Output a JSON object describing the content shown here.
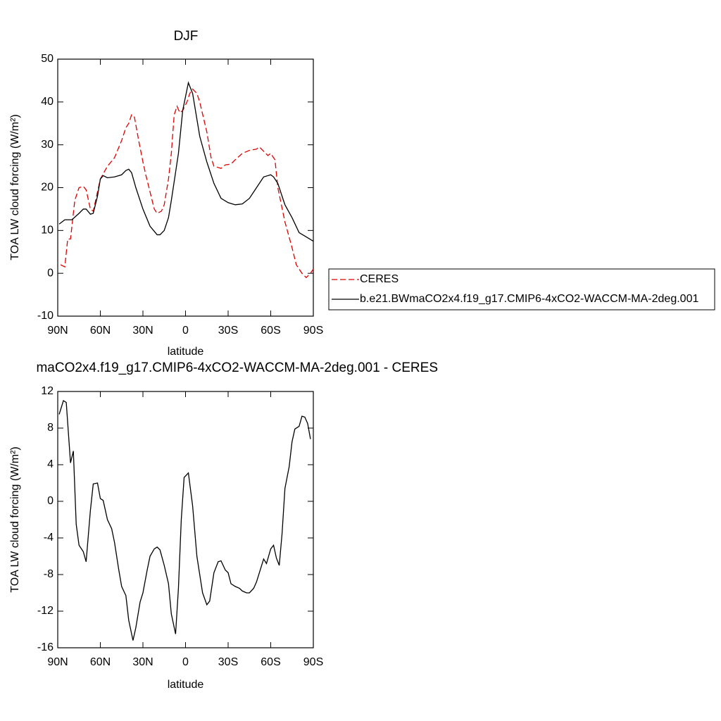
{
  "chart_data": [
    {
      "type": "line",
      "title": "DJF",
      "xlabel": "latitude",
      "ylabel": "TOA LW cloud forcing (W/m²)",
      "xlim": [
        90,
        -90
      ],
      "ylim": [
        -10,
        50
      ],
      "xticks": [
        {
          "value": 90,
          "label": "90N"
        },
        {
          "value": 60,
          "label": "60N"
        },
        {
          "value": 30,
          "label": "30N"
        },
        0,
        {
          "value": -30,
          "label": "30S"
        },
        {
          "value": -60,
          "label": "60S"
        },
        {
          "value": -90,
          "label": "90S"
        }
      ],
      "yticks": [
        -10,
        0,
        10,
        20,
        30,
        40,
        50
      ],
      "legend": "outside right",
      "series": [
        {
          "name": "CERES",
          "color": "#e00000",
          "dash": true,
          "x": [
            88,
            85,
            83,
            81,
            78,
            75,
            72,
            70,
            67,
            65,
            62,
            60,
            55,
            50,
            45,
            42,
            40,
            38,
            36,
            33,
            30,
            28,
            25,
            22,
            20,
            17,
            15,
            12,
            10,
            8,
            6,
            4,
            2,
            -1,
            -3,
            -5,
            -8,
            -10,
            -15,
            -18,
            -20,
            -25,
            -28,
            -32,
            -35,
            -40,
            -45,
            -50,
            -52,
            -55,
            -58,
            -60,
            -63,
            -65,
            -70,
            -75,
            -78,
            -82,
            -85,
            -88,
            -90
          ],
          "values": [
            2,
            1.5,
            8,
            8,
            17,
            20,
            20.3,
            19.5,
            15,
            14.5,
            19,
            22,
            25,
            27,
            31,
            34,
            35,
            37,
            36.5,
            31,
            26,
            23,
            19,
            15,
            14,
            14.5,
            16,
            22,
            28,
            37,
            39,
            37.5,
            38,
            40,
            42,
            43,
            42,
            40,
            33,
            27,
            25,
            24.5,
            25.3,
            25.5,
            26.5,
            28,
            28.7,
            29,
            29.5,
            28.5,
            27.5,
            28,
            26.5,
            20,
            12,
            6,
            2,
            0,
            -1,
            0,
            1
          ]
        },
        {
          "name": "b.e21.BWmaCO2x4.f19_g17.CMIP6-4xCO2-WACCM-MA-2deg.001",
          "color": "#000000",
          "dash": false,
          "x": [
            89,
            85,
            80,
            75,
            72,
            70,
            67,
            65,
            62,
            60,
            58,
            55,
            50,
            45,
            42,
            40,
            38,
            35,
            30,
            25,
            20,
            18,
            15,
            12,
            10,
            5,
            2,
            -2,
            -5,
            -10,
            -15,
            -20,
            -25,
            -30,
            -35,
            -40,
            -45,
            -50,
            -55,
            -60,
            -62,
            -65,
            -70,
            -75,
            -80,
            -85,
            -90
          ],
          "values": [
            11.5,
            12.5,
            12.5,
            14,
            15,
            15,
            13.8,
            14,
            18,
            22,
            22.8,
            22.3,
            22.5,
            23,
            24,
            24.3,
            23.5,
            20,
            15,
            11,
            9,
            9,
            10,
            13,
            17,
            28,
            38,
            44.5,
            42,
            32,
            26,
            21,
            17.5,
            16.5,
            16,
            16.2,
            17.5,
            20,
            22.5,
            23,
            22.5,
            21,
            16,
            13,
            9.5,
            8.5,
            7.5
          ]
        }
      ]
    },
    {
      "type": "line",
      "title": "maCO2x4.f19_g17.CMIP6-4xCO2-WACCM-MA-2deg.001 - CERES",
      "xlabel": "latitude",
      "ylabel": "TOA LW cloud forcing (W/m²)",
      "xlim": [
        90,
        -90
      ],
      "ylim": [
        -16,
        12
      ],
      "xticks": [
        {
          "value": 90,
          "label": "90N"
        },
        {
          "value": 60,
          "label": "60N"
        },
        {
          "value": 30,
          "label": "30N"
        },
        0,
        {
          "value": -30,
          "label": "30S"
        },
        {
          "value": -60,
          "label": "60S"
        },
        {
          "value": -90,
          "label": "90S"
        }
      ],
      "yticks": [
        -16,
        -12,
        -8,
        -4,
        0,
        4,
        8,
        12
      ],
      "series": [
        {
          "color": "#000000",
          "dash": false,
          "x": [
            89,
            86,
            84,
            81,
            79,
            77,
            75,
            72,
            70,
            67,
            65,
            62,
            60,
            58,
            55,
            52,
            50,
            47,
            45,
            42,
            40,
            37,
            35,
            32,
            30,
            27,
            25,
            22,
            20,
            18,
            15,
            12,
            10,
            7,
            5,
            3,
            1,
            -2,
            -5,
            -8,
            -12,
            -15,
            -17,
            -20,
            -23,
            -25,
            -28,
            -30,
            -32,
            -35,
            -38,
            -40,
            -43,
            -45,
            -48,
            -50,
            -55,
            -57,
            -60,
            -62,
            -64,
            -66,
            -68,
            -70,
            -73,
            -75,
            -77,
            -80,
            -82,
            -84,
            -86,
            -88
          ],
          "values": [
            9.5,
            11,
            10.8,
            4.2,
            5.5,
            -2.5,
            -4.8,
            -5.5,
            -6.6,
            -1,
            1.9,
            2,
            0.3,
            0.1,
            -2,
            -3,
            -4.5,
            -7.5,
            -9.3,
            -10.3,
            -13,
            -15.2,
            -13.8,
            -11,
            -10,
            -7.5,
            -6,
            -5.2,
            -5,
            -5.3,
            -7,
            -9,
            -12.3,
            -14.5,
            -9.5,
            -2,
            2.6,
            3.1,
            -0.5,
            -6,
            -10,
            -11.3,
            -10.9,
            -7.8,
            -6.6,
            -6.5,
            -7.5,
            -7.8,
            -9,
            -9.3,
            -9.5,
            -9.8,
            -10,
            -10,
            -9.5,
            -8.8,
            -6.3,
            -6.8,
            -5.2,
            -4.8,
            -6.2,
            -7,
            -3.5,
            1.4,
            3.8,
            6.5,
            7.9,
            8.2,
            9.3,
            9.2,
            8.5,
            6.8
          ]
        }
      ]
    }
  ]
}
